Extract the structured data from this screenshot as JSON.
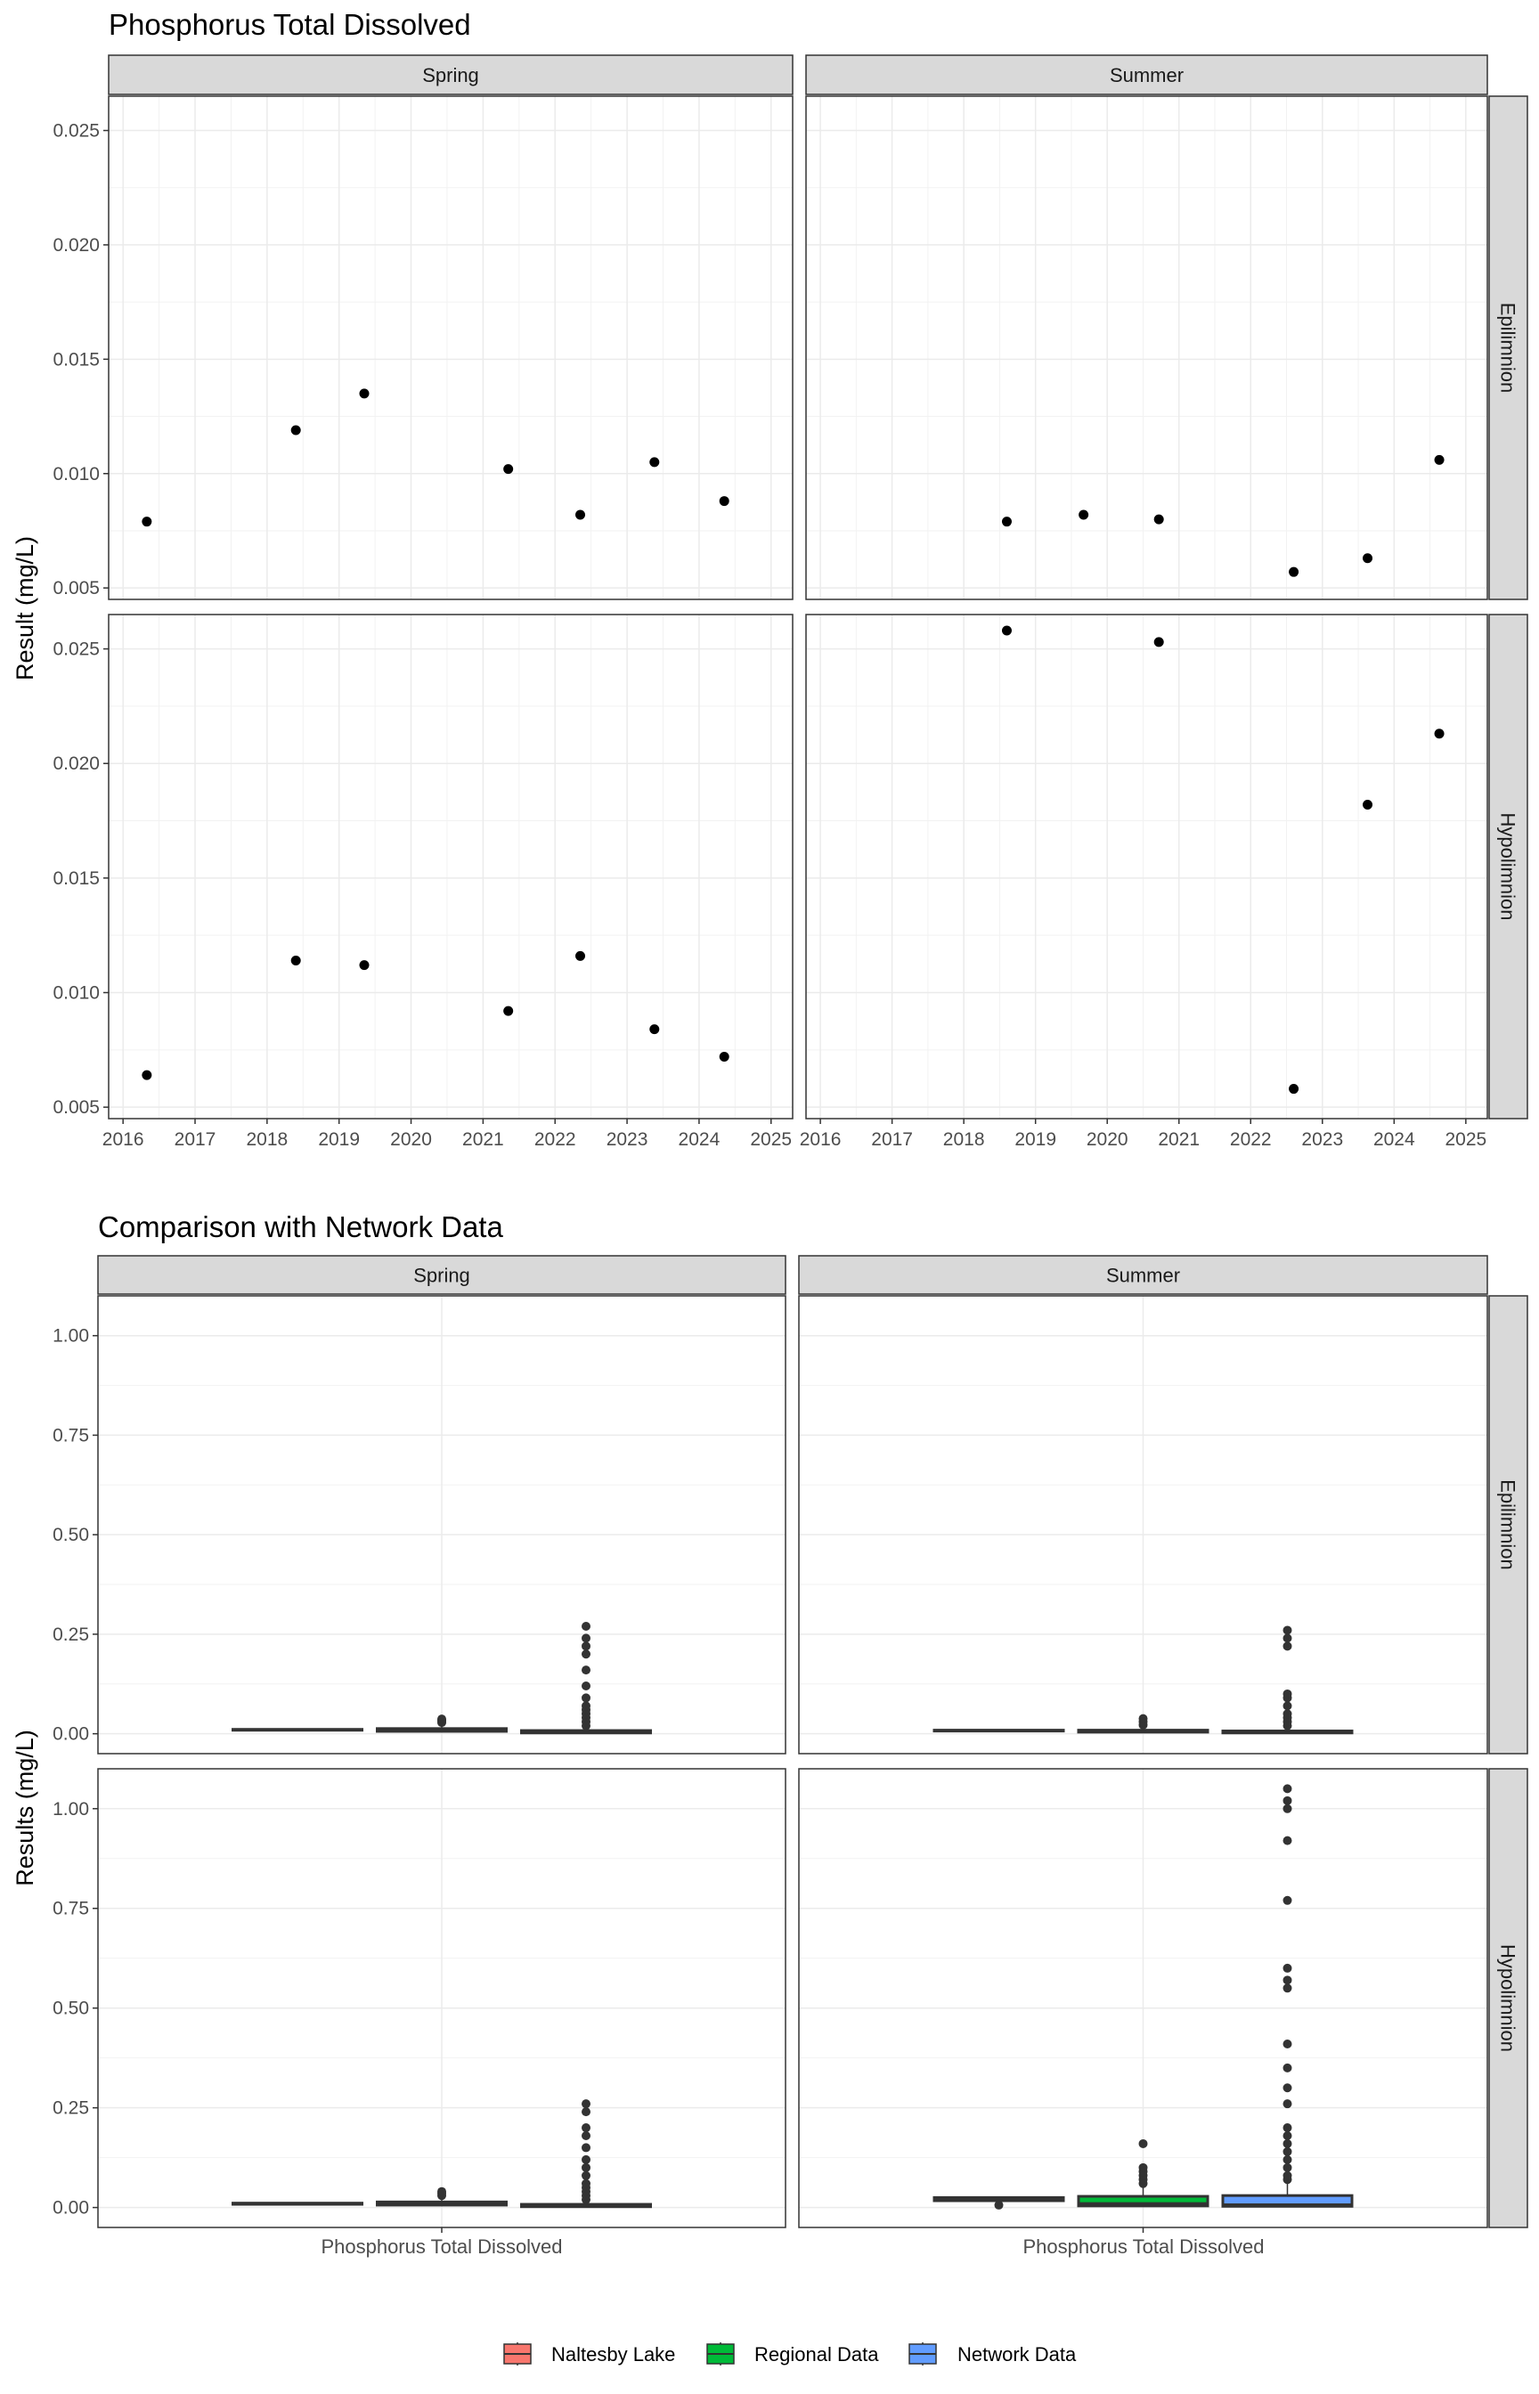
{
  "chart_data": [
    {
      "type": "scatter",
      "title": "Phosphorus Total Dissolved",
      "xlabel": "",
      "ylabel": "Result (mg/L)",
      "x_ticks": [
        "2016",
        "2017",
        "2018",
        "2019",
        "2020",
        "2021",
        "2022",
        "2023",
        "2024",
        "2025"
      ],
      "xlim": [
        2015.8,
        2025.3
      ],
      "facet_columns": [
        "Spring",
        "Summer"
      ],
      "facet_rows": [
        "Epilimnion",
        "Hypolimnion"
      ],
      "panels": [
        {
          "column": "Spring",
          "row": "Epilimnion",
          "ylim": [
            0.0045,
            0.0265
          ],
          "y_ticks": [
            "0.005",
            "0.010",
            "0.015",
            "0.020",
            "0.025"
          ],
          "points": [
            [
              2016.33,
              0.0079
            ],
            [
              2018.4,
              0.0119
            ],
            [
              2019.35,
              0.0135
            ],
            [
              2021.35,
              0.0102
            ],
            [
              2022.35,
              0.0082
            ],
            [
              2023.38,
              0.0105
            ],
            [
              2024.35,
              0.0088
            ]
          ]
        },
        {
          "column": "Summer",
          "row": "Epilimnion",
          "ylim": [
            0.0045,
            0.0265
          ],
          "y_ticks": [],
          "points": [
            [
              2018.6,
              0.0079
            ],
            [
              2019.67,
              0.0082
            ],
            [
              2020.72,
              0.008
            ],
            [
              2022.6,
              0.0057
            ],
            [
              2023.63,
              0.0063
            ],
            [
              2024.63,
              0.0106
            ]
          ]
        },
        {
          "column": "Spring",
          "row": "Hypolimnion",
          "ylim": [
            0.0045,
            0.0265
          ],
          "y_ticks": [
            "0.005",
            "0.010",
            "0.015",
            "0.020",
            "0.025"
          ],
          "points": [
            [
              2016.33,
              0.0064
            ],
            [
              2018.4,
              0.0114
            ],
            [
              2019.35,
              0.0112
            ],
            [
              2021.35,
              0.0092
            ],
            [
              2022.35,
              0.0116
            ],
            [
              2023.38,
              0.0084
            ],
            [
              2024.35,
              0.0072
            ]
          ]
        },
        {
          "column": "Summer",
          "row": "Hypolimnion",
          "ylim": [
            0.0045,
            0.0265
          ],
          "y_ticks": [],
          "points": [
            [
              2018.6,
              0.0258
            ],
            [
              2020.72,
              0.0253
            ],
            [
              2022.6,
              0.0058
            ],
            [
              2023.63,
              0.0182
            ],
            [
              2024.63,
              0.0213
            ]
          ]
        }
      ]
    },
    {
      "type": "box",
      "title": "Comparison with Network Data",
      "xlabel": "",
      "ylabel": "Results (mg/L)",
      "category": "Phosphorus Total Dissolved",
      "ylim": [
        -0.05,
        1.1
      ],
      "y_ticks": [
        "0.00",
        "0.25",
        "0.50",
        "0.75",
        "1.00"
      ],
      "facet_columns": [
        "Spring",
        "Summer"
      ],
      "facet_rows": [
        "Epilimnion",
        "Hypolimnion"
      ],
      "legend": {
        "position": "bottom",
        "items": [
          {
            "label": "Naltesby Lake",
            "color": "#F8766D"
          },
          {
            "label": "Regional Data",
            "color": "#00BA38"
          },
          {
            "label": "Network Data",
            "color": "#619CFF"
          }
        ]
      },
      "panels": [
        {
          "column": "Spring",
          "row": "Epilimnion",
          "boxes": [
            {
              "group": "Naltesby Lake",
              "q1": 0.009,
              "median": 0.01,
              "q3": 0.011,
              "whisker_low": 0.008,
              "whisker_high": 0.013,
              "outliers": []
            },
            {
              "group": "Regional Data",
              "q1": 0.006,
              "median": 0.009,
              "q3": 0.013,
              "whisker_low": 0.003,
              "whisker_high": 0.022,
              "outliers": [
                0.028,
                0.031,
                0.034,
                0.037
              ]
            },
            {
              "group": "Network Data",
              "q1": 0.002,
              "median": 0.004,
              "q3": 0.008,
              "whisker_low": 0.001,
              "whisker_high": 0.014,
              "outliers": [
                0.02,
                0.03,
                0.04,
                0.05,
                0.06,
                0.07,
                0.09,
                0.12,
                0.16,
                0.2,
                0.22,
                0.24,
                0.27
              ]
            }
          ]
        },
        {
          "column": "Summer",
          "row": "Epilimnion",
          "boxes": [
            {
              "group": "Naltesby Lake",
              "q1": 0.007,
              "median": 0.008,
              "q3": 0.009,
              "whisker_low": 0.006,
              "whisker_high": 0.011,
              "outliers": []
            },
            {
              "group": "Regional Data",
              "q1": 0.004,
              "median": 0.006,
              "q3": 0.009,
              "whisker_low": 0.002,
              "whisker_high": 0.016,
              "outliers": [
                0.022,
                0.03,
                0.038
              ]
            },
            {
              "group": "Network Data",
              "q1": 0.002,
              "median": 0.004,
              "q3": 0.007,
              "whisker_low": 0.001,
              "whisker_high": 0.012,
              "outliers": [
                0.02,
                0.03,
                0.04,
                0.05,
                0.07,
                0.09,
                0.1,
                0.22,
                0.24,
                0.26
              ]
            }
          ]
        },
        {
          "column": "Spring",
          "row": "Hypolimnion",
          "boxes": [
            {
              "group": "Naltesby Lake",
              "q1": 0.008,
              "median": 0.01,
              "q3": 0.011,
              "whisker_low": 0.006,
              "whisker_high": 0.012,
              "outliers": []
            },
            {
              "group": "Regional Data",
              "q1": 0.006,
              "median": 0.01,
              "q3": 0.014,
              "whisker_low": 0.003,
              "whisker_high": 0.024,
              "outliers": [
                0.03,
                0.035,
                0.04
              ]
            },
            {
              "group": "Network Data",
              "q1": 0.002,
              "median": 0.004,
              "q3": 0.008,
              "whisker_low": 0.001,
              "whisker_high": 0.014,
              "outliers": [
                0.02,
                0.03,
                0.04,
                0.05,
                0.06,
                0.08,
                0.1,
                0.12,
                0.15,
                0.18,
                0.2,
                0.24,
                0.26
              ]
            }
          ]
        },
        {
          "column": "Summer",
          "row": "Hypolimnion",
          "boxes": [
            {
              "group": "Naltesby Lake",
              "q1": 0.017,
              "median": 0.021,
              "q3": 0.025,
              "whisker_low": 0.006,
              "whisker_high": 0.026,
              "outliers": [
                0.006
              ]
            },
            {
              "group": "Regional Data",
              "q1": 0.004,
              "median": 0.01,
              "q3": 0.028,
              "whisker_low": 0.001,
              "whisker_high": 0.05,
              "outliers": [
                0.06,
                0.07,
                0.08,
                0.09,
                0.1,
                0.16
              ]
            },
            {
              "group": "Network Data",
              "q1": 0.003,
              "median": 0.007,
              "q3": 0.03,
              "whisker_low": 0.001,
              "whisker_high": 0.06,
              "outliers": [
                0.07,
                0.08,
                0.1,
                0.12,
                0.14,
                0.16,
                0.18,
                0.2,
                0.26,
                0.3,
                0.35,
                0.41,
                0.55,
                0.57,
                0.6,
                0.77,
                0.92,
                1.0,
                1.02,
                1.05
              ]
            }
          ]
        }
      ]
    }
  ]
}
